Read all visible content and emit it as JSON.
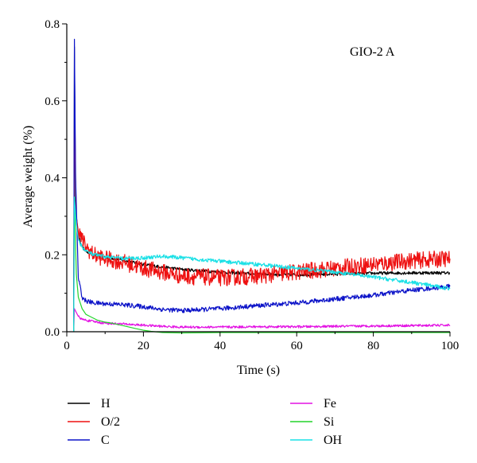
{
  "chart_data": {
    "type": "line",
    "annotation": "GIO-2 A",
    "xlabel": "Time (s)",
    "ylabel": "Average weight (%)",
    "xlim": [
      0,
      100
    ],
    "ylim": [
      0,
      0.8
    ],
    "x_ticks": [
      "0",
      "20",
      "40",
      "60",
      "80",
      "100"
    ],
    "y_ticks": [
      "0.0",
      "0.2",
      "0.4",
      "0.6",
      "0.8"
    ],
    "grid": false,
    "legend_position": "bottom",
    "series": [
      {
        "name": "H",
        "color": "#000000",
        "x": [
          1.8,
          2,
          2.3,
          3,
          4,
          5,
          7,
          10,
          15,
          20,
          25,
          30,
          40,
          50,
          60,
          70,
          80,
          90,
          100
        ],
        "y": [
          0.0,
          0.74,
          0.32,
          0.25,
          0.22,
          0.21,
          0.2,
          0.195,
          0.185,
          0.175,
          0.168,
          0.162,
          0.155,
          0.15,
          0.148,
          0.15,
          0.152,
          0.153,
          0.153
        ],
        "noise": 0.004
      },
      {
        "name": "O/2",
        "color": "#ee1111",
        "x": [
          1.8,
          2,
          2.5,
          3,
          4,
          5,
          7,
          10,
          15,
          20,
          25,
          30,
          40,
          50,
          60,
          70,
          80,
          90,
          100
        ],
        "y": [
          0.0,
          0.55,
          0.3,
          0.26,
          0.24,
          0.22,
          0.2,
          0.19,
          0.18,
          0.165,
          0.155,
          0.145,
          0.14,
          0.145,
          0.155,
          0.165,
          0.175,
          0.185,
          0.19
        ],
        "noise": 0.022
      },
      {
        "name": "C",
        "color": "#0c13c8",
        "x": [
          1.8,
          2,
          2.3,
          3,
          4,
          5,
          7,
          10,
          15,
          20,
          25,
          30,
          40,
          50,
          60,
          70,
          80,
          90,
          100
        ],
        "y": [
          0.0,
          0.76,
          0.4,
          0.14,
          0.09,
          0.08,
          0.075,
          0.073,
          0.07,
          0.065,
          0.058,
          0.055,
          0.06,
          0.068,
          0.075,
          0.085,
          0.095,
          0.108,
          0.118
        ],
        "noise": 0.006
      },
      {
        "name": "Fe",
        "color": "#e312e3",
        "x": [
          1.8,
          2,
          2.5,
          3,
          4,
          6,
          8,
          10,
          15,
          20,
          25,
          30,
          40,
          50,
          60,
          70,
          80,
          90,
          100
        ],
        "y": [
          0.0,
          0.06,
          0.05,
          0.04,
          0.032,
          0.028,
          0.025,
          0.022,
          0.02,
          0.017,
          0.014,
          0.012,
          0.012,
          0.013,
          0.013,
          0.014,
          0.015,
          0.016,
          0.017
        ],
        "noise": 0.003
      },
      {
        "name": "Si",
        "color": "#22d42a",
        "x": [
          1.8,
          2,
          2.5,
          3,
          4,
          5,
          6,
          8,
          10,
          12,
          15,
          18,
          20,
          22,
          25,
          30,
          40,
          60,
          80,
          100
        ],
        "y": [
          0.0,
          0.35,
          0.15,
          0.09,
          0.06,
          0.045,
          0.04,
          0.03,
          0.025,
          0.022,
          0.015,
          0.008,
          0.004,
          0.001,
          -0.002,
          -0.003,
          -0.002,
          -0.002,
          -0.002,
          -0.002
        ],
        "noise": 0.0
      },
      {
        "name": "OH",
        "color": "#19e0e6",
        "x": [
          1.8,
          2,
          2.5,
          3,
          4,
          5,
          7,
          10,
          15,
          20,
          25,
          30,
          40,
          50,
          60,
          70,
          80,
          90,
          100
        ],
        "y": [
          0.0,
          0.35,
          0.28,
          0.24,
          0.22,
          0.21,
          0.2,
          0.195,
          0.19,
          0.192,
          0.196,
          0.192,
          0.183,
          0.175,
          0.165,
          0.155,
          0.142,
          0.128,
          0.112
        ],
        "noise": 0.005
      }
    ]
  }
}
